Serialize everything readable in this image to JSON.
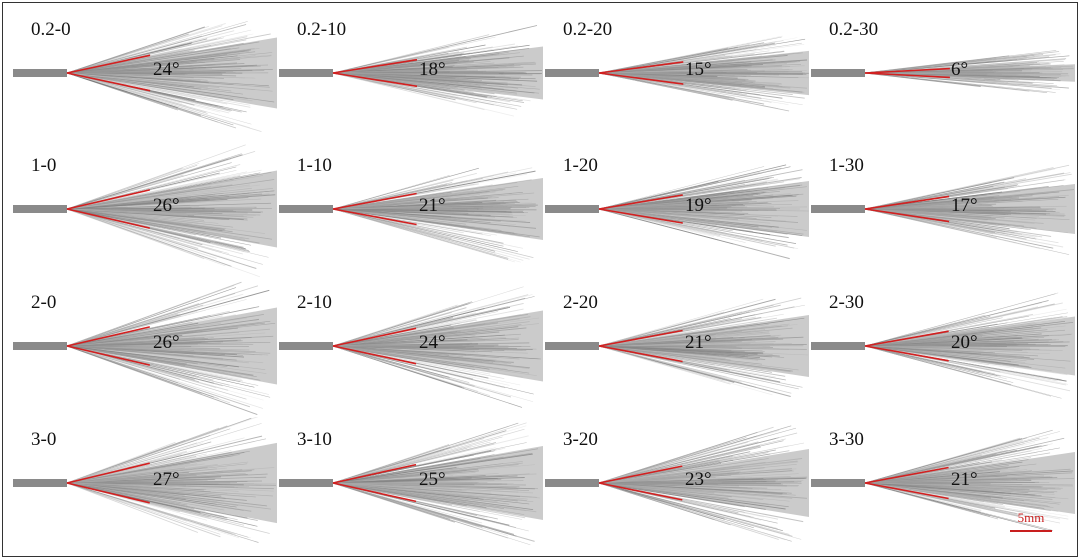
{
  "colors": {
    "spray": "#8c8c8c",
    "nozzle": "#8a8a8a",
    "cone_line": "#d22020",
    "scale": "#c81e1e"
  },
  "panels": [
    {
      "label": "0.2-0",
      "angle": "24°",
      "angle_deg": 24
    },
    {
      "label": "0.2-10",
      "angle": "18°",
      "angle_deg": 18
    },
    {
      "label": "0.2-20",
      "angle": "15°",
      "angle_deg": 15
    },
    {
      "label": "0.2-30",
      "angle": "6°",
      "angle_deg": 6
    },
    {
      "label": "1-0",
      "angle": "26°",
      "angle_deg": 26
    },
    {
      "label": "1-10",
      "angle": "21°",
      "angle_deg": 21
    },
    {
      "label": "1-20",
      "angle": "19°",
      "angle_deg": 19
    },
    {
      "label": "1-30",
      "angle": "17°",
      "angle_deg": 17
    },
    {
      "label": "2-0",
      "angle": "26°",
      "angle_deg": 26
    },
    {
      "label": "2-10",
      "angle": "24°",
      "angle_deg": 24
    },
    {
      "label": "2-20",
      "angle": "21°",
      "angle_deg": 21
    },
    {
      "label": "2-30",
      "angle": "20°",
      "angle_deg": 20
    },
    {
      "label": "3-0",
      "angle": "27°",
      "angle_deg": 27
    },
    {
      "label": "3-10",
      "angle": "25°",
      "angle_deg": 25
    },
    {
      "label": "3-20",
      "angle": "23°",
      "angle_deg": 23
    },
    {
      "label": "3-30",
      "angle": "21°",
      "angle_deg": 21
    }
  ],
  "scale_bar": {
    "label": "5mm"
  }
}
